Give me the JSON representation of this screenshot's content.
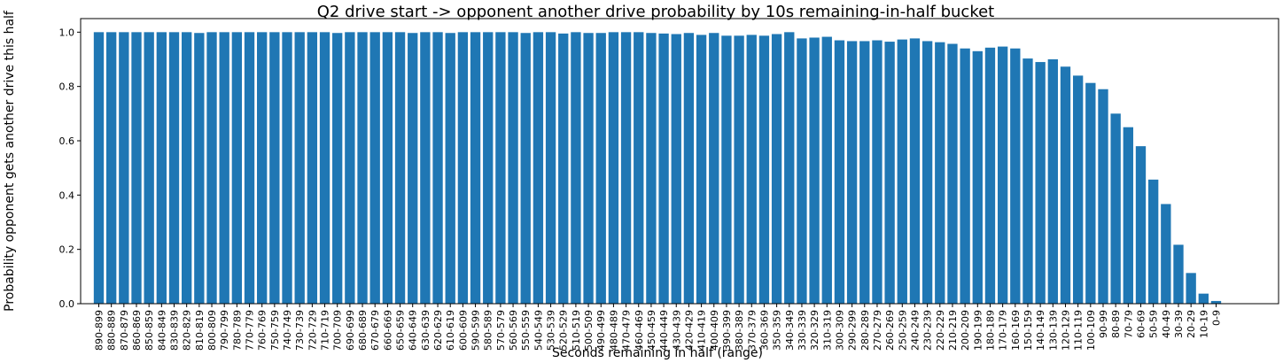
{
  "chart_data": {
    "type": "bar",
    "title": "Q2 drive start -> opponent another drive probability by 10s remaining-in-half bucket",
    "xlabel": "Seconds remaining in half (range)",
    "ylabel": "Probability opponent gets another drive this half",
    "ylim": [
      0,
      1.05
    ],
    "yticks": [
      "0.0",
      "0.2",
      "0.4",
      "0.6",
      "0.8",
      "1.0"
    ],
    "grid": false,
    "bar_color": "#1f77b4",
    "categories": [
      "890-899",
      "880-889",
      "870-879",
      "860-869",
      "850-859",
      "840-849",
      "830-839",
      "820-829",
      "810-819",
      "800-809",
      "790-799",
      "780-789",
      "770-779",
      "760-769",
      "750-759",
      "740-749",
      "730-739",
      "720-729",
      "710-719",
      "700-709",
      "690-699",
      "680-689",
      "670-679",
      "660-669",
      "650-659",
      "640-649",
      "630-639",
      "620-629",
      "610-619",
      "600-609",
      "590-599",
      "580-589",
      "570-579",
      "560-569",
      "550-559",
      "540-549",
      "530-539",
      "520-529",
      "510-519",
      "500-509",
      "490-499",
      "480-489",
      "470-479",
      "460-469",
      "450-459",
      "440-449",
      "430-439",
      "420-429",
      "410-419",
      "400-409",
      "390-399",
      "380-389",
      "370-379",
      "360-369",
      "350-359",
      "340-349",
      "330-339",
      "320-329",
      "310-319",
      "300-309",
      "290-299",
      "280-289",
      "270-279",
      "260-269",
      "250-259",
      "240-249",
      "230-239",
      "220-229",
      "210-219",
      "200-209",
      "190-199",
      "180-189",
      "170-179",
      "160-169",
      "150-159",
      "140-149",
      "130-139",
      "120-129",
      "110-119",
      "100-109",
      "90-99",
      "80-89",
      "70-79",
      "60-69",
      "50-59",
      "40-49",
      "30-39",
      "20-29",
      "10-19",
      "0-9"
    ],
    "values": [
      1.0,
      1.0,
      1.0,
      1.0,
      1.0,
      1.0,
      1.0,
      1.0,
      0.997,
      1.0,
      1.0,
      1.0,
      1.0,
      1.0,
      1.0,
      1.0,
      1.0,
      1.0,
      1.0,
      0.997,
      1.0,
      1.0,
      1.0,
      1.0,
      1.0,
      0.997,
      1.0,
      1.0,
      0.997,
      1.0,
      1.0,
      1.0,
      1.0,
      1.0,
      0.997,
      1.0,
      1.0,
      0.995,
      1.0,
      0.997,
      0.997,
      1.0,
      1.0,
      1.0,
      0.997,
      0.995,
      0.993,
      0.997,
      0.99,
      0.997,
      0.987,
      0.987,
      0.99,
      0.987,
      0.993,
      1.0,
      0.977,
      0.98,
      0.983,
      0.97,
      0.967,
      0.967,
      0.97,
      0.965,
      0.973,
      0.977,
      0.967,
      0.963,
      0.957,
      0.94,
      0.93,
      0.943,
      0.947,
      0.94,
      0.903,
      0.89,
      0.9,
      0.873,
      0.84,
      0.813,
      0.79,
      0.7,
      0.65,
      0.58,
      0.457,
      0.367,
      0.217,
      0.113,
      0.037,
      0.01
    ]
  }
}
